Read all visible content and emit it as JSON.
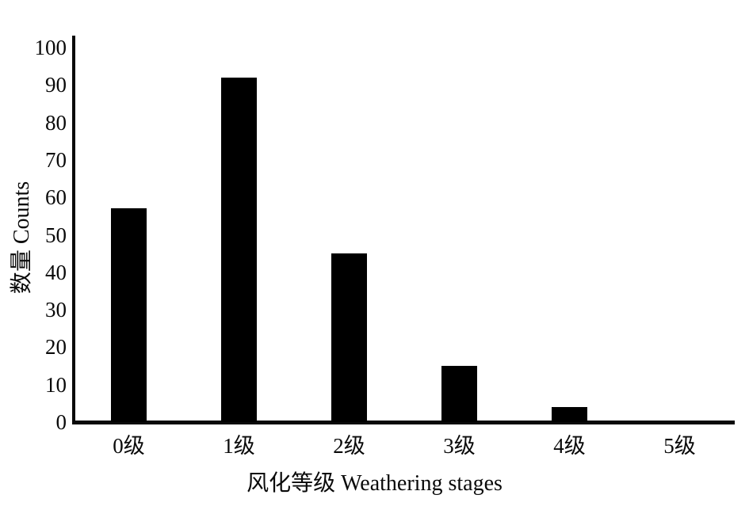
{
  "chart_data": {
    "type": "bar",
    "title": "",
    "categories": [
      "0级",
      "1级",
      "2级",
      "3级",
      "4级",
      "5级"
    ],
    "values": [
      57,
      92,
      45,
      15,
      4,
      0
    ],
    "xlabel": "风化等级 Weathering stages",
    "ylabel": "数量 Counts",
    "ylim": [
      0,
      100
    ],
    "yticks": [
      0,
      10,
      20,
      30,
      40,
      50,
      60,
      70,
      80,
      90,
      100
    ],
    "grid": false,
    "legend_position": "none",
    "bar_color": "#000000",
    "axis_color": "#0a0a0a",
    "background_color": "#ffffff"
  }
}
